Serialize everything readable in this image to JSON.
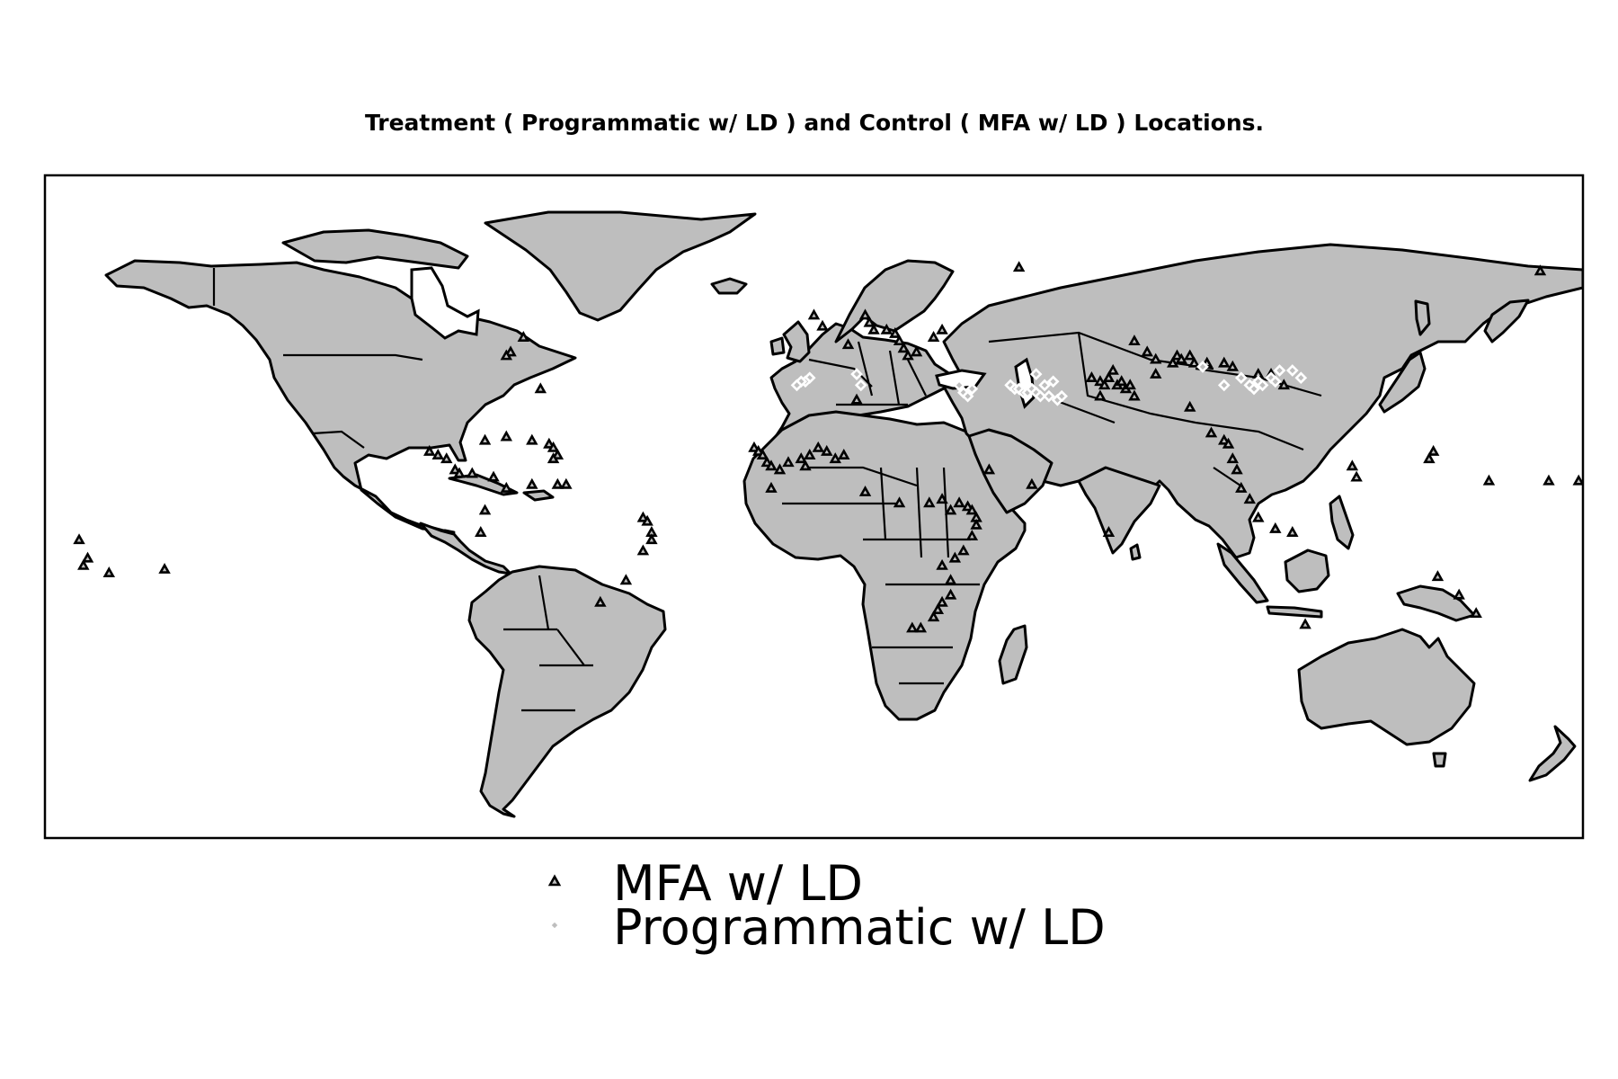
{
  "title": "Treatment ( Programmatic w/ LD ) and Control ( MFA w/ LD ) Locations.",
  "projection": "equirectangular",
  "map_extent": {
    "lon": [
      -180,
      180
    ],
    "lat": [
      -90,
      90
    ]
  },
  "colors": {
    "land": "#bebebe",
    "ocean": "#ffffff",
    "coastline": "#000000",
    "control_marker_edge": "#000000",
    "treatment_marker_edge": "#ffffff"
  },
  "legend": {
    "placement": "bottom-center",
    "items": [
      {
        "label": "MFA w/ LD",
        "marker": "triangle",
        "edge_color": "#000000"
      },
      {
        "label": "Programmatic w/ LD",
        "marker": "diamond",
        "edge_color": "#ffffff"
      }
    ]
  },
  "chart_data": {
    "type": "scatter",
    "title": "Treatment ( Programmatic w/ LD ) and Control ( MFA w/ LD ) Locations.",
    "xlim": [
      -180,
      180
    ],
    "ylim": [
      -90,
      90
    ],
    "series": [
      {
        "name": "MFA w/ LD",
        "marker": "triangle",
        "points": [
          [
            -71,
            42
          ],
          [
            -72,
            41
          ],
          [
            -68,
            46
          ],
          [
            -64,
            32
          ],
          [
            -90,
            15
          ],
          [
            -88,
            14
          ],
          [
            -86,
            13
          ],
          [
            -84,
            10
          ],
          [
            -83,
            9
          ],
          [
            -80,
            9
          ],
          [
            -77,
            18
          ],
          [
            -72,
            19
          ],
          [
            -66,
            18
          ],
          [
            -62,
            17
          ],
          [
            -61,
            16
          ],
          [
            -60,
            14
          ],
          [
            -61,
            13
          ],
          [
            -75,
            8
          ],
          [
            -72,
            5
          ],
          [
            -66,
            6
          ],
          [
            -60,
            6
          ],
          [
            -58,
            6
          ],
          [
            -77,
            -1
          ],
          [
            -78,
            -7
          ],
          [
            -40,
            -3
          ],
          [
            -39,
            -4
          ],
          [
            -38,
            -7
          ],
          [
            -38,
            -9
          ],
          [
            -40,
            -12
          ],
          [
            -44,
            -20
          ],
          [
            -50,
            -26
          ],
          [
            -170,
            -14
          ],
          [
            -172,
            -9
          ],
          [
            -171,
            -16
          ],
          [
            -152,
            -17
          ],
          [
            -165,
            -18
          ],
          [
            0,
            52
          ],
          [
            2,
            49
          ],
          [
            8,
            44
          ],
          [
            12,
            52
          ],
          [
            13,
            50
          ],
          [
            14,
            48
          ],
          [
            17,
            48
          ],
          [
            19,
            47
          ],
          [
            20,
            45
          ],
          [
            21,
            43
          ],
          [
            22,
            41
          ],
          [
            24,
            42
          ],
          [
            28,
            46
          ],
          [
            30,
            48
          ],
          [
            10,
            29
          ],
          [
            -14,
            16
          ],
          [
            -13,
            15
          ],
          [
            -12,
            14
          ],
          [
            -11,
            12
          ],
          [
            -10,
            11
          ],
          [
            -8,
            10
          ],
          [
            -6,
            12
          ],
          [
            -3,
            13
          ],
          [
            -2,
            11
          ],
          [
            -1,
            14
          ],
          [
            1,
            16
          ],
          [
            3,
            15
          ],
          [
            5,
            13
          ],
          [
            7,
            14
          ],
          [
            -10,
            5
          ],
          [
            12,
            4
          ],
          [
            20,
            1
          ],
          [
            27,
            1
          ],
          [
            30,
            2
          ],
          [
            32,
            -1
          ],
          [
            34,
            1
          ],
          [
            36,
            0
          ],
          [
            37,
            -1
          ],
          [
            38,
            -3
          ],
          [
            38,
            -5
          ],
          [
            37,
            -8
          ],
          [
            35,
            -12
          ],
          [
            33,
            -14
          ],
          [
            30,
            -16
          ],
          [
            32,
            -20
          ],
          [
            32,
            -24
          ],
          [
            30,
            -26
          ],
          [
            29,
            -28
          ],
          [
            28,
            -30
          ],
          [
            25,
            -33
          ],
          [
            23,
            -33
          ],
          [
            41,
            10
          ],
          [
            51,
            6
          ],
          [
            69,
            -7
          ],
          [
            48,
            65
          ],
          [
            65,
            35
          ],
          [
            67,
            34
          ],
          [
            68,
            33
          ],
          [
            69,
            35
          ],
          [
            70,
            37
          ],
          [
            71,
            33
          ],
          [
            72,
            34
          ],
          [
            73,
            32
          ],
          [
            74,
            33
          ],
          [
            75,
            30
          ],
          [
            67,
            30
          ],
          [
            80,
            40
          ],
          [
            84,
            39
          ],
          [
            85,
            41
          ],
          [
            86,
            40
          ],
          [
            88,
            41
          ],
          [
            89,
            39
          ],
          [
            92,
            39
          ],
          [
            96,
            39
          ],
          [
            104,
            36
          ],
          [
            107,
            36
          ],
          [
            110,
            33
          ],
          [
            80,
            36
          ],
          [
            78,
            42
          ],
          [
            88,
            27
          ],
          [
            93,
            20
          ],
          [
            96,
            18
          ],
          [
            97,
            17
          ],
          [
            98,
            13
          ],
          [
            99,
            10
          ],
          [
            100,
            5
          ],
          [
            102,
            2
          ],
          [
            104,
            -3
          ],
          [
            108,
            -6
          ],
          [
            112,
            -7
          ],
          [
            126,
            11
          ],
          [
            127,
            8
          ],
          [
            144,
            13
          ],
          [
            145,
            15
          ],
          [
            158,
            7
          ],
          [
            172,
            7
          ],
          [
            179,
            7
          ],
          [
            170,
            64
          ],
          [
            75,
            45
          ],
          [
            98,
            38
          ],
          [
            146,
            -19
          ],
          [
            151,
            -24
          ],
          [
            155,
            -29
          ],
          [
            115,
            -32
          ]
        ]
      },
      {
        "name": "Programmatic w/ LD",
        "marker": "diamond",
        "points": [
          [
            -1,
            35
          ],
          [
            -2,
            34
          ],
          [
            -3,
            34
          ],
          [
            -4,
            33
          ],
          [
            10,
            36
          ],
          [
            11,
            33
          ],
          [
            35,
            31
          ],
          [
            36,
            30
          ],
          [
            34,
            33
          ],
          [
            37,
            32
          ],
          [
            46,
            33
          ],
          [
            47,
            32
          ],
          [
            48,
            32
          ],
          [
            49,
            31
          ],
          [
            50,
            31
          ],
          [
            51,
            32
          ],
          [
            52,
            31
          ],
          [
            53,
            30
          ],
          [
            55,
            30
          ],
          [
            54,
            33
          ],
          [
            56,
            34
          ],
          [
            57,
            29
          ],
          [
            52,
            36
          ],
          [
            58,
            30
          ],
          [
            91,
            38
          ],
          [
            96,
            33
          ],
          [
            100,
            35
          ],
          [
            102,
            33
          ],
          [
            103,
            32
          ],
          [
            104,
            34
          ],
          [
            105,
            33
          ],
          [
            107,
            35
          ],
          [
            108,
            34
          ],
          [
            109,
            37
          ],
          [
            112,
            37
          ],
          [
            114,
            35
          ]
        ]
      }
    ]
  }
}
